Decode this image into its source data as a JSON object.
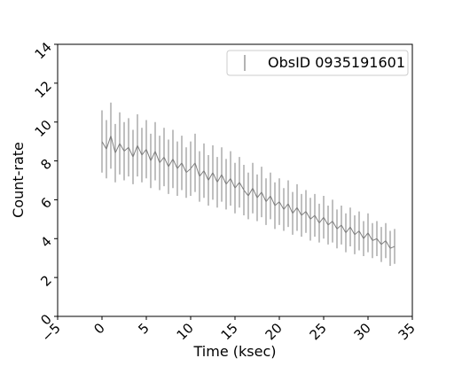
{
  "chart_data": {
    "type": "errorbar-line",
    "xlabel": "Time (ksec)",
    "ylabel": "Count-rate",
    "xlim": [
      -5,
      35
    ],
    "ylim": [
      0,
      14
    ],
    "xticks": [
      {
        "value": -5,
        "label": "−5"
      },
      0,
      5,
      10,
      15,
      20,
      25,
      30,
      35
    ],
    "yticks": [
      0,
      2,
      4,
      6,
      8,
      10,
      12,
      14
    ],
    "legend": "upper right",
    "series": [
      {
        "name": "ObsID 0935191601",
        "color": "#808080",
        "x": [
          0,
          0.5,
          1,
          1.5,
          2,
          2.5,
          3,
          3.5,
          4,
          4.5,
          5,
          5.5,
          6,
          6.5,
          7,
          7.5,
          8,
          8.5,
          9,
          9.5,
          10,
          10.5,
          11,
          11.5,
          12,
          12.5,
          13,
          13.5,
          14,
          14.5,
          15,
          15.5,
          16,
          16.5,
          17,
          17.5,
          18,
          18.5,
          19,
          19.5,
          20,
          20.5,
          21,
          21.5,
          22,
          22.5,
          23,
          23.5,
          24,
          24.5,
          25,
          25.5,
          26,
          26.5,
          27,
          27.5,
          28,
          28.5,
          29,
          29.5,
          30,
          30.5,
          31,
          31.5,
          32,
          32.5,
          33
        ],
        "values": [
          9.0,
          8.6,
          9.3,
          8.4,
          8.9,
          8.5,
          8.7,
          8.2,
          8.8,
          8.3,
          8.6,
          8.0,
          8.5,
          7.9,
          8.2,
          7.7,
          8.1,
          7.6,
          7.9,
          7.4,
          7.6,
          7.9,
          7.2,
          7.5,
          7.0,
          7.4,
          6.9,
          7.3,
          6.8,
          7.1,
          6.6,
          6.9,
          6.5,
          6.2,
          6.6,
          6.1,
          6.4,
          5.9,
          6.2,
          5.7,
          5.9,
          5.5,
          5.8,
          5.3,
          5.6,
          5.2,
          5.4,
          5.0,
          5.2,
          4.8,
          5.1,
          4.7,
          4.9,
          4.5,
          4.7,
          4.3,
          4.6,
          4.2,
          4.4,
          4.0,
          4.3,
          3.9,
          4.0,
          3.7,
          3.9,
          3.5,
          3.6
        ],
        "errors": [
          1.6,
          1.5,
          1.7,
          1.5,
          1.6,
          1.5,
          1.5,
          1.4,
          1.6,
          1.4,
          1.5,
          1.4,
          1.5,
          1.4,
          1.5,
          1.4,
          1.5,
          1.4,
          1.4,
          1.3,
          1.4,
          1.5,
          1.3,
          1.4,
          1.3,
          1.4,
          1.3,
          1.4,
          1.3,
          1.4,
          1.3,
          1.3,
          1.3,
          1.2,
          1.3,
          1.2,
          1.3,
          1.2,
          1.2,
          1.2,
          1.2,
          1.1,
          1.2,
          1.1,
          1.2,
          1.1,
          1.1,
          1.1,
          1.1,
          1.0,
          1.1,
          1.0,
          1.1,
          1.0,
          1.0,
          1.0,
          1.0,
          1.0,
          1.0,
          0.9,
          1.0,
          0.9,
          0.9,
          0.9,
          0.9,
          0.9,
          0.9
        ]
      }
    ]
  }
}
